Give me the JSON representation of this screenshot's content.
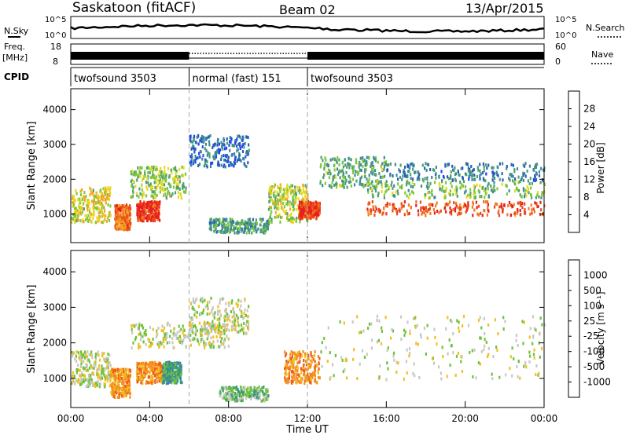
{
  "header": {
    "title": "Saskatoon (fitACF)",
    "beam": "Beam 02",
    "date": "13/Apr/2015"
  },
  "labels": {
    "nsky": "N.Sky",
    "nsearch": "N.Search",
    "freq": "Freq.",
    "mhz": "[MHz]",
    "nave": "Nave",
    "cpid": "CPID",
    "xlabel": "Time UT",
    "ylabel_power": "Slant Range [km]",
    "ylabel_velocity": "Slant Range [km]",
    "cbar_power": "Power [dB]",
    "cbar_velocity": "Velocity [m s⁻¹]"
  },
  "noise_panel": {
    "left_ticks": [
      "10^5",
      "10^0"
    ],
    "right_ticks": [
      "10^5",
      "10^0"
    ]
  },
  "freq_panel": {
    "left_ticks": [
      "18",
      "8"
    ],
    "right_ticks": [
      "60",
      "0"
    ]
  },
  "cpid_segments": [
    {
      "label": "twofsound 3503",
      "start_hour": 0,
      "end_hour": 6
    },
    {
      "label": "normal (fast) 151",
      "start_hour": 6,
      "end_hour": 12
    },
    {
      "label": "twofsound 3503",
      "start_hour": 12,
      "end_hour": 24
    }
  ],
  "chart_data": {
    "type": "heatmap",
    "x_ticks": [
      "00:00",
      "04:00",
      "08:00",
      "12:00",
      "16:00",
      "20:00",
      "00:00"
    ],
    "x_tick_hours": [
      0,
      4,
      8,
      12,
      16,
      20,
      24
    ],
    "xlim_hours": [
      0,
      24
    ],
    "ylim_km": [
      180,
      4600
    ],
    "y_ticks": [
      "1000",
      "2000",
      "3000",
      "4000"
    ],
    "y_tick_values": [
      1000,
      2000,
      3000,
      4000
    ],
    "power_colorbar": {
      "ticks": [
        "4",
        "8",
        "12",
        "16",
        "20",
        "24",
        "28"
      ],
      "colors": [
        "#1f3fff",
        "#2a5fb8",
        "#3d8a9a",
        "#4ea070",
        "#7fc83a",
        "#e8d81e",
        "#f5a623",
        "#f07820",
        "#e84a1a",
        "#e81c1c"
      ]
    },
    "velocity_colorbar": {
      "ticks": [
        "1000",
        "500",
        "100",
        "25",
        "-25",
        "-100",
        "-500",
        "-1000"
      ],
      "colors": [
        "#2c4fa0",
        "#3f7fb0",
        "#3a9a78",
        "#6cc23a",
        "#c8c8c4",
        "#f0c020",
        "#f59020",
        "#f05a18",
        "#e82010"
      ]
    },
    "power_regions": [
      {
        "t0": 0.0,
        "t1": 2.0,
        "r0": 800,
        "r1": 1800,
        "level": 0.55
      },
      {
        "t0": 2.2,
        "t1": 3.0,
        "r0": 600,
        "r1": 1300,
        "level": 0.8
      },
      {
        "t0": 3.3,
        "t1": 4.5,
        "r0": 850,
        "r1": 1400,
        "level": 0.95
      },
      {
        "t0": 3.0,
        "t1": 5.8,
        "r0": 1500,
        "r1": 2400,
        "level": 0.45
      },
      {
        "t0": 6.0,
        "t1": 9.0,
        "r0": 2400,
        "r1": 3300,
        "level": 0.15
      },
      {
        "t0": 7.0,
        "t1": 10.0,
        "r0": 500,
        "r1": 900,
        "level": 0.3
      },
      {
        "t0": 10.0,
        "t1": 12.0,
        "r0": 800,
        "r1": 1900,
        "level": 0.5
      },
      {
        "t0": 11.5,
        "t1": 12.6,
        "r0": 900,
        "r1": 1400,
        "level": 0.92
      },
      {
        "t0": 12.6,
        "t1": 16.0,
        "r0": 1800,
        "r1": 2700,
        "level": 0.35
      },
      {
        "t0": 15.0,
        "t1": 24.0,
        "r0": 1000,
        "r1": 1400,
        "level": 0.88
      },
      {
        "t0": 15.0,
        "t1": 24.0,
        "r0": 1500,
        "r1": 2000,
        "level": 0.4
      },
      {
        "t0": 16.0,
        "t1": 24.0,
        "r0": 2000,
        "r1": 2500,
        "level": 0.2
      }
    ],
    "velocity_regions": [
      {
        "t0": 0.0,
        "t1": 2.0,
        "r0": 800,
        "r1": 1800,
        "level": 4
      },
      {
        "t0": 2.0,
        "t1": 3.0,
        "r0": 500,
        "r1": 1300,
        "level": 6
      },
      {
        "t0": 3.3,
        "t1": 4.6,
        "r0": 900,
        "r1": 1500,
        "level": 6
      },
      {
        "t0": 4.6,
        "t1": 5.6,
        "r0": 900,
        "r1": 1500,
        "level": 2
      },
      {
        "t0": 6.0,
        "t1": 9.0,
        "r0": 2300,
        "r1": 3300,
        "level": 4
      },
      {
        "t0": 7.5,
        "t1": 10.0,
        "r0": 400,
        "r1": 800,
        "level": 3
      },
      {
        "t0": 10.8,
        "t1": 12.6,
        "r0": 900,
        "r1": 1800,
        "level": 6
      },
      {
        "t0": 12.6,
        "t1": 24.0,
        "r0": 1000,
        "r1": 2800,
        "level": 4
      },
      {
        "t0": 3.0,
        "t1": 8.0,
        "r0": 1900,
        "r1": 2600,
        "level": 4
      }
    ]
  }
}
